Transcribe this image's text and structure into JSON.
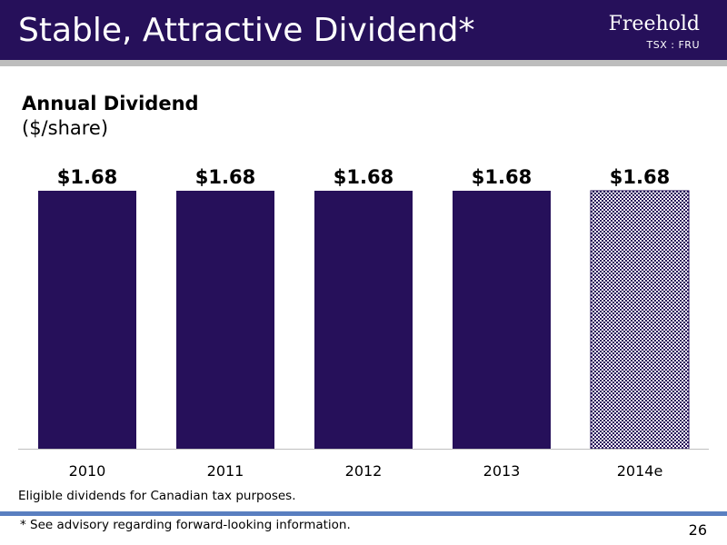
{
  "header": {
    "title": "Stable, Attractive Dividend*",
    "logo_name": "Freehold",
    "logo_ticker": "TSX : FRU"
  },
  "colors": {
    "header_bg": "#26105a",
    "bar": "#26105a",
    "bar_estimate_pattern": "#26105a",
    "footer_line": "#5a7fc0"
  },
  "chart_data": {
    "type": "bar",
    "title": "Annual Dividend",
    "subtitle": "($/share)",
    "categories": [
      "2010",
      "2011",
      "2012",
      "2013",
      "2014e"
    ],
    "values": [
      1.68,
      1.68,
      1.68,
      1.68,
      1.68
    ],
    "value_labels": [
      "$1.68",
      "$1.68",
      "$1.68",
      "$1.68",
      "$1.68"
    ],
    "estimate_flags": [
      false,
      false,
      false,
      false,
      true
    ],
    "ylim": [
      0,
      1.68
    ],
    "grid": false,
    "legend": "none"
  },
  "notes": {
    "eligible": "Eligible dividends for Canadian tax purposes.",
    "advisory": "* See advisory regarding forward-looking information."
  },
  "page_number": "26"
}
